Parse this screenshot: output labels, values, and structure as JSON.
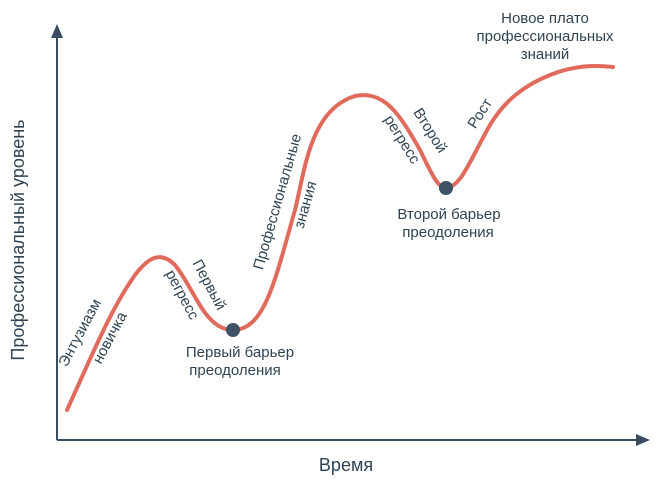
{
  "axes": {
    "x_title": "Время",
    "y_title": "Профессиональный уровень"
  },
  "phases": {
    "enthusiasm_1": "Энтузиазм",
    "enthusiasm_2": "новичка",
    "first_regress_1": "Первый",
    "first_regress_2": "регресс",
    "prof_knowledge_1": "Профессиональные",
    "prof_knowledge_2": "знания",
    "second_regress_1": "Второй",
    "second_regress_2": "регресс",
    "growth": "Рост"
  },
  "milestones": {
    "first_barrier_1": "Первый барьер",
    "first_barrier_2": "преодоления",
    "second_barrier_1": "Второй барьер",
    "second_barrier_2": "преодоления",
    "plateau_1": "Новое плато",
    "plateau_2": "профессиональных",
    "plateau_3": "знаний"
  },
  "colors": {
    "curve": "#e06a5c",
    "axis": "#3a4d5e",
    "point": "#3d5264",
    "text": "#2f4354"
  }
}
